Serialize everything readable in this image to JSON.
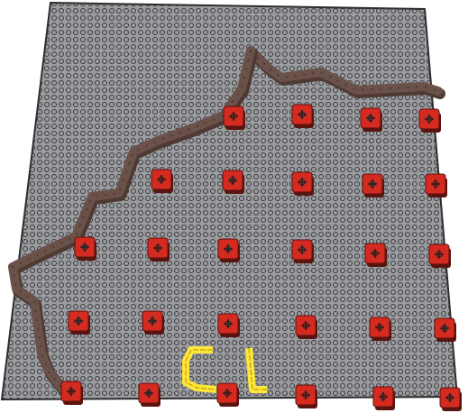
{
  "scene": {
    "colors": {
      "background": "#ffffff",
      "board": "#9a9ca0",
      "board_edge": "#2b2b2b",
      "studs": "#3a3b3e",
      "brick": "#d42a1f",
      "brick_shadow": "#5a1410",
      "stud_mark": "#222222",
      "wall": "#6a5149",
      "wall_shadow": "#4e3a33",
      "yellow": "#ffe638",
      "yellow_edge": "#a89400"
    },
    "grid": {
      "rows": 6,
      "cols": 6
    },
    "wall_rows": [
      [
        1,
        2
      ],
      [
        0,
        0
      ],
      [
        0,
        0
      ],
      [
        0,
        0
      ],
      [
        0,
        0
      ],
      [
        0,
        0
      ]
    ]
  }
}
